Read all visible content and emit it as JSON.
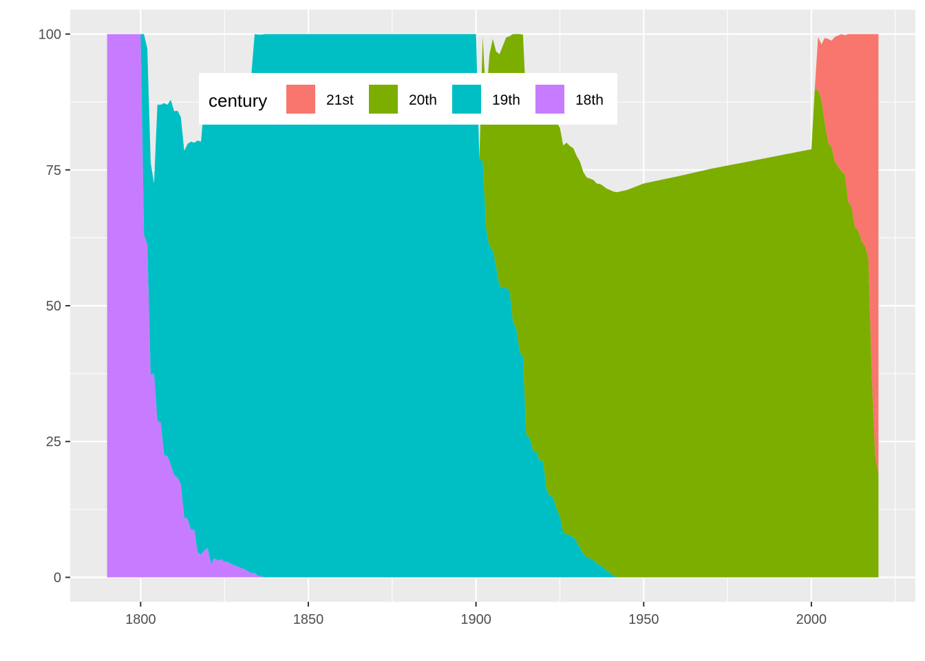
{
  "chart_data": {
    "type": "area",
    "stacked": "percent",
    "title": "",
    "xlabel": "",
    "ylabel": "",
    "xlim": [
      1779,
      2031
    ],
    "ylim": [
      -4.5,
      104.5
    ],
    "x_ticks": [
      1800,
      1850,
      1900,
      1950,
      2000
    ],
    "x_tick_labels": [
      "1800",
      "1850",
      "1900",
      "1950",
      "2000"
    ],
    "y_ticks": [
      0,
      25,
      50,
      75,
      100
    ],
    "y_tick_labels": [
      "0",
      "25",
      "50",
      "75",
      "100"
    ],
    "grid": true,
    "legend": {
      "title": "century",
      "position": "top-inside",
      "direction": "horizontal",
      "order": [
        "21st",
        "20th",
        "19th",
        "18th"
      ]
    },
    "stack_order_bottom_to_top": [
      "18th",
      "19th",
      "20th",
      "21st"
    ],
    "series": [
      {
        "name": "21st",
        "color": "#F8766D",
        "points": [
          [
            2001,
            0
          ],
          [
            2002,
            9.8
          ],
          [
            2003,
            10.2
          ],
          [
            2004,
            15.7
          ],
          [
            2005,
            19
          ],
          [
            2006,
            19.6
          ],
          [
            2007,
            23
          ],
          [
            2009,
            25.3
          ],
          [
            2010,
            25.6
          ],
          [
            2011,
            30.9
          ],
          [
            2012,
            31.8
          ],
          [
            2013,
            35.6
          ],
          [
            2014,
            36.2
          ],
          [
            2015,
            38.2
          ],
          [
            2016,
            39
          ],
          [
            2017,
            41.2
          ],
          [
            2018,
            63
          ],
          [
            2019,
            77.5
          ],
          [
            2020,
            81
          ]
        ]
      },
      {
        "name": "20th",
        "color": "#7CAE00",
        "points": [
          [
            1901,
            0
          ],
          [
            1902,
            22.9
          ],
          [
            1903,
            23.3
          ],
          [
            1904,
            35.3
          ],
          [
            1905,
            38.9
          ],
          [
            1906,
            39.6
          ],
          [
            1907,
            42.7
          ],
          [
            1909,
            46.2
          ],
          [
            1910,
            46.6
          ],
          [
            1911,
            52.9
          ],
          [
            1912,
            54.2
          ],
          [
            1913,
            58.4
          ],
          [
            1914,
            59.4
          ],
          [
            1915,
            60.7
          ],
          [
            1917,
            61.5
          ],
          [
            1918,
            65
          ],
          [
            1919,
            67.7
          ],
          [
            1920,
            68.2
          ],
          [
            1921,
            70.6
          ],
          [
            1923,
            70.9
          ],
          [
            1924,
            71.2
          ],
          [
            1925,
            71.5
          ],
          [
            1926,
            71.3
          ],
          [
            1927,
            72
          ],
          [
            1928,
            71.8
          ],
          [
            1929,
            71.5
          ],
          [
            1930,
            71
          ],
          [
            1931,
            71.1
          ],
          [
            1932,
            70.2
          ],
          [
            1933,
            69.9
          ],
          [
            1934,
            69.9
          ],
          [
            1936,
            70
          ],
          [
            1938,
            70.2
          ],
          [
            1940,
            70.5
          ],
          [
            1942,
            70.9
          ],
          [
            1945,
            71.3
          ],
          [
            1950,
            72.5
          ],
          [
            1960,
            73.8
          ],
          [
            1970,
            75.2
          ],
          [
            1980,
            76.4
          ],
          [
            1990,
            77.6
          ],
          [
            2000,
            78.8
          ],
          [
            2001,
            89.8
          ],
          [
            2002,
            89.7
          ],
          [
            2003,
            87.9
          ],
          [
            2004,
            83.6
          ],
          [
            2005,
            80.1
          ],
          [
            2006,
            79.2
          ],
          [
            2007,
            76.5
          ],
          [
            2009,
            74.7
          ],
          [
            2010,
            74.2
          ],
          [
            2011,
            69.1
          ],
          [
            2012,
            68.2
          ],
          [
            2013,
            64.4
          ],
          [
            2014,
            63.8
          ],
          [
            2015,
            61.8
          ],
          [
            2016,
            61
          ],
          [
            2017,
            58.8
          ],
          [
            2018,
            37
          ],
          [
            2019,
            22.5
          ],
          [
            2020,
            19
          ]
        ]
      },
      {
        "name": "19th",
        "color": "#00BFC4",
        "points": [
          [
            1790,
            0
          ],
          [
            1800,
            0
          ],
          [
            1801,
            37
          ],
          [
            1802,
            36
          ],
          [
            1803,
            39
          ],
          [
            1804,
            35
          ],
          [
            1805,
            58.2
          ],
          [
            1806,
            58.5
          ],
          [
            1807,
            64.8
          ],
          [
            1808,
            64.7
          ],
          [
            1809,
            67.2
          ],
          [
            1810,
            67
          ],
          [
            1811,
            67.5
          ],
          [
            1812,
            67.6
          ],
          [
            1813,
            67.5
          ],
          [
            1814,
            69
          ],
          [
            1815,
            71.5
          ],
          [
            1816,
            71.2
          ],
          [
            1817,
            75.8
          ],
          [
            1818,
            76
          ],
          [
            1819,
            82.5
          ],
          [
            1820,
            82.8
          ],
          [
            1821,
            85
          ],
          [
            1822,
            84.6
          ],
          [
            1823,
            84.4
          ],
          [
            1824,
            85
          ],
          [
            1825,
            85.3
          ],
          [
            1826,
            86.5
          ],
          [
            1827,
            87
          ],
          [
            1828,
            88
          ],
          [
            1829,
            88.5
          ],
          [
            1830,
            89.3
          ],
          [
            1831,
            90
          ],
          [
            1832,
            90.6
          ],
          [
            1833,
            91.7
          ],
          [
            1834,
            99.2
          ],
          [
            1835,
            99.6
          ],
          [
            1836,
            99.7
          ],
          [
            1837,
            100
          ],
          [
            1900,
            100
          ],
          [
            1901,
            77
          ],
          [
            1902,
            76.6
          ],
          [
            1903,
            64.3
          ],
          [
            1904,
            60.9
          ],
          [
            1905,
            60.2
          ],
          [
            1906,
            57.2
          ],
          [
            1907,
            53.6
          ],
          [
            1909,
            53.2
          ],
          [
            1910,
            53
          ],
          [
            1911,
            47.1
          ],
          [
            1912,
            45.8
          ],
          [
            1913,
            41.6
          ],
          [
            1914,
            40.5
          ],
          [
            1915,
            26.1
          ],
          [
            1916,
            25.8
          ],
          [
            1917,
            23.3
          ],
          [
            1918,
            23.2
          ],
          [
            1919,
            21.4
          ],
          [
            1920,
            21.5
          ],
          [
            1921,
            16.2
          ],
          [
            1922,
            15
          ],
          [
            1923,
            14.8
          ],
          [
            1924,
            12.6
          ],
          [
            1925,
            11.3
          ],
          [
            1926,
            8.2
          ],
          [
            1927,
            8
          ],
          [
            1928,
            7.6
          ],
          [
            1929,
            7.5
          ],
          [
            1930,
            6.6
          ],
          [
            1931,
            5.4
          ],
          [
            1932,
            4.4
          ],
          [
            1933,
            3.7
          ],
          [
            1934,
            3.5
          ],
          [
            1935,
            3.2
          ],
          [
            1936,
            2.5
          ],
          [
            1937,
            2.3
          ],
          [
            1938,
            1.8
          ],
          [
            1939,
            1.2
          ],
          [
            1940,
            0.8
          ],
          [
            1941,
            0.3
          ],
          [
            1942,
            0
          ]
        ]
      },
      {
        "name": "18th",
        "color": "#C77CFF",
        "points": [
          [
            1790,
            100
          ],
          [
            1800,
            100
          ],
          [
            1801,
            63
          ],
          [
            1802,
            61.3
          ],
          [
            1803,
            37.3
          ],
          [
            1804,
            37.5
          ],
          [
            1805,
            28.8
          ],
          [
            1806,
            28.5
          ],
          [
            1807,
            22.5
          ],
          [
            1808,
            22.3
          ],
          [
            1809,
            20.7
          ],
          [
            1810,
            18.8
          ],
          [
            1811,
            18.4
          ],
          [
            1812,
            17.1
          ],
          [
            1813,
            11
          ],
          [
            1814,
            10.8
          ],
          [
            1815,
            8.7
          ],
          [
            1816,
            8.8
          ],
          [
            1817,
            4.6
          ],
          [
            1818,
            4.2
          ],
          [
            1819,
            5
          ],
          [
            1820,
            5.4
          ],
          [
            1821,
            2.5
          ],
          [
            1822,
            3.5
          ],
          [
            1823,
            3.1
          ],
          [
            1824,
            3.3
          ],
          [
            1825,
            2.9
          ],
          [
            1826,
            2.8
          ],
          [
            1827,
            2.5
          ],
          [
            1828,
            2.2
          ],
          [
            1829,
            2
          ],
          [
            1830,
            1.7
          ],
          [
            1831,
            1.5
          ],
          [
            1832,
            1.1
          ],
          [
            1833,
            0.8
          ],
          [
            1834,
            0.8
          ],
          [
            1835,
            0.3
          ],
          [
            1836,
            0.2
          ],
          [
            1837,
            0
          ]
        ]
      }
    ]
  }
}
